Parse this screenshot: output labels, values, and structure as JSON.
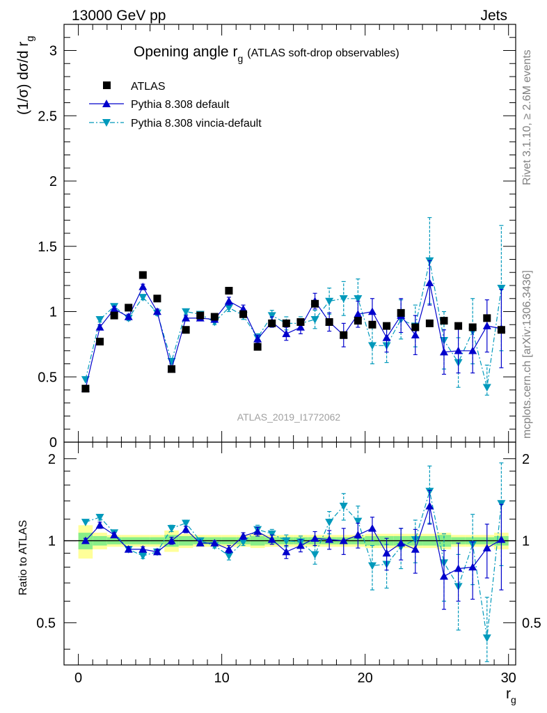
{
  "header": {
    "process": "13000 GeV pp",
    "category": "Jets",
    "rivet": "Rivet 3.1.10, ≥ 2.6M events",
    "mcplots": "mcplots.cern.ch [arXiv:1306.3436]"
  },
  "chart_data": {
    "type": "scatter",
    "title_main": "Opening angle r",
    "title_sub": "g",
    "title_paren": "(ATLAS soft-drop observables)",
    "analysis_label": "ATLAS_2019_I1772062",
    "xlabel": "r",
    "xlabel_sub": "g",
    "ylabel_top": "(1/σ) dσ/d r",
    "ylabel_top_sub": "g",
    "ylabel_ratio": "Ratio to ATLAS",
    "xlim": [
      -1,
      30.5
    ],
    "ylim_top": [
      0,
      3.2
    ],
    "ylim_ratio": [
      0.35,
      2.3
    ],
    "x_ticks": [
      0,
      10,
      20,
      30
    ],
    "y_ticks_top": [
      {
        "v": 0,
        "label": "0"
      },
      {
        "v": 0.5,
        "label": "0.5"
      },
      {
        "v": 1,
        "label": "1"
      },
      {
        "v": 1.5,
        "label": "1.5"
      },
      {
        "v": 2,
        "label": "2"
      },
      {
        "v": 2.5,
        "label": "2.5"
      },
      {
        "v": 3,
        "label": "3"
      }
    ],
    "y_ticks_ratio": [
      {
        "v": 0.5,
        "label": "0.5"
      },
      {
        "v": 1,
        "label": "1"
      },
      {
        "v": 2,
        "label": "2"
      }
    ],
    "x": [
      0.5,
      1.5,
      2.5,
      3.5,
      4.5,
      5.5,
      6.5,
      7.5,
      8.5,
      9.5,
      10.5,
      11.5,
      12.5,
      13.5,
      14.5,
      15.5,
      16.5,
      17.5,
      18.5,
      19.5,
      20.5,
      21.5,
      22.5,
      23.5,
      24.5,
      25.5,
      26.5,
      27.5,
      28.5,
      29.5
    ],
    "data_band_inner": [
      0.07,
      0.04,
      0.03,
      0.03,
      0.03,
      0.03,
      0.05,
      0.04,
      0.03,
      0.03,
      0.03,
      0.03,
      0.04,
      0.03,
      0.03,
      0.03,
      0.03,
      0.03,
      0.03,
      0.03,
      0.04,
      0.04,
      0.04,
      0.04,
      0.04,
      0.05,
      0.03,
      0.03,
      0.03,
      0.04
    ],
    "data_band_outer": [
      0.14,
      0.07,
      0.05,
      0.05,
      0.05,
      0.05,
      0.09,
      0.06,
      0.05,
      0.05,
      0.05,
      0.05,
      0.06,
      0.05,
      0.05,
      0.05,
      0.05,
      0.05,
      0.05,
      0.05,
      0.06,
      0.06,
      0.06,
      0.06,
      0.06,
      0.07,
      0.05,
      0.05,
      0.05,
      0.07
    ],
    "series": [
      {
        "name": "ATLAS",
        "color": "#000000",
        "marker": "square",
        "y": [
          0.41,
          0.77,
          0.97,
          1.03,
          1.28,
          1.1,
          0.56,
          0.86,
          0.97,
          0.96,
          1.16,
          0.98,
          0.73,
          0.91,
          0.91,
          0.92,
          1.06,
          0.92,
          0.82,
          0.93,
          0.9,
          0.89,
          0.99,
          0.88,
          0.91,
          0.93,
          0.89,
          0.88,
          0.95,
          0.86
        ],
        "ratio": [
          1,
          1,
          1,
          1,
          1,
          1,
          1,
          1,
          1,
          1,
          1,
          1,
          1,
          1,
          1,
          1,
          1,
          1,
          1,
          1,
          1,
          1,
          1,
          1,
          1,
          1,
          1,
          1,
          1,
          1
        ]
      },
      {
        "name": "Pythia 8.308 default",
        "color": "#0000cc",
        "marker": "triangle-up",
        "y": [
          0.41,
          0.88,
          1.02,
          0.96,
          1.19,
          1.0,
          0.56,
          0.95,
          0.95,
          0.94,
          1.08,
          1.02,
          0.79,
          0.92,
          0.83,
          0.88,
          1.08,
          0.92,
          0.82,
          0.98,
          1.0,
          0.8,
          0.97,
          0.82,
          1.22,
          0.69,
          0.7,
          0.7,
          0.89,
          0.87
        ],
        "err": [
          0.01,
          0.02,
          0.02,
          0.02,
          0.02,
          0.02,
          0.02,
          0.02,
          0.02,
          0.02,
          0.03,
          0.03,
          0.03,
          0.04,
          0.05,
          0.05,
          0.06,
          0.07,
          0.09,
          0.1,
          0.1,
          0.11,
          0.13,
          0.15,
          0.17,
          0.17,
          0.17,
          0.17,
          0.2,
          0.3
        ],
        "ratio": [
          1.0,
          1.14,
          1.05,
          0.93,
          0.93,
          0.91,
          1.0,
          1.1,
          0.98,
          0.98,
          0.93,
          1.04,
          1.08,
          1.01,
          0.91,
          0.96,
          1.02,
          1.01,
          1.0,
          1.05,
          1.11,
          0.9,
          0.98,
          0.93,
          1.34,
          0.74,
          0.79,
          0.8,
          0.94,
          1.01
        ],
        "ratio_err": [
          0.02,
          0.03,
          0.02,
          0.02,
          0.02,
          0.02,
          0.03,
          0.03,
          0.02,
          0.02,
          0.03,
          0.03,
          0.04,
          0.04,
          0.05,
          0.05,
          0.06,
          0.08,
          0.11,
          0.11,
          0.11,
          0.12,
          0.13,
          0.17,
          0.19,
          0.18,
          0.19,
          0.19,
          0.21,
          0.35
        ]
      },
      {
        "name": "Pythia 8.308 vincia-default",
        "color": "#0099bb",
        "marker": "triangle-down",
        "y": [
          0.48,
          0.94,
          1.04,
          0.95,
          1.11,
          0.99,
          0.62,
          1.0,
          0.98,
          0.92,
          1.03,
          0.97,
          0.8,
          0.97,
          0.91,
          0.91,
          0.94,
          1.08,
          1.1,
          1.1,
          0.74,
          0.74,
          0.94,
          0.89,
          1.39,
          0.78,
          0.61,
          0.85,
          0.42,
          1.18
        ],
        "err": [
          0.01,
          0.02,
          0.02,
          0.02,
          0.02,
          0.02,
          0.02,
          0.02,
          0.02,
          0.02,
          0.03,
          0.03,
          0.03,
          0.04,
          0.05,
          0.05,
          0.07,
          0.1,
          0.13,
          0.15,
          0.14,
          0.13,
          0.15,
          0.16,
          0.33,
          0.22,
          0.19,
          0.25,
          0.17,
          0.48
        ],
        "ratio": [
          1.17,
          1.22,
          1.07,
          0.93,
          0.88,
          0.91,
          1.11,
          1.16,
          1.0,
          0.96,
          0.88,
          0.99,
          1.1,
          1.06,
          1.0,
          0.99,
          0.89,
          1.17,
          1.34,
          1.18,
          0.81,
          0.82,
          0.95,
          1.01,
          1.52,
          0.83,
          0.68,
          0.97,
          0.44,
          1.37
        ],
        "ratio_err": [
          0.02,
          0.03,
          0.02,
          0.02,
          0.02,
          0.02,
          0.03,
          0.03,
          0.02,
          0.02,
          0.03,
          0.03,
          0.04,
          0.04,
          0.05,
          0.05,
          0.07,
          0.11,
          0.15,
          0.16,
          0.15,
          0.15,
          0.16,
          0.18,
          0.36,
          0.23,
          0.21,
          0.28,
          0.18,
          0.56
        ]
      }
    ]
  }
}
